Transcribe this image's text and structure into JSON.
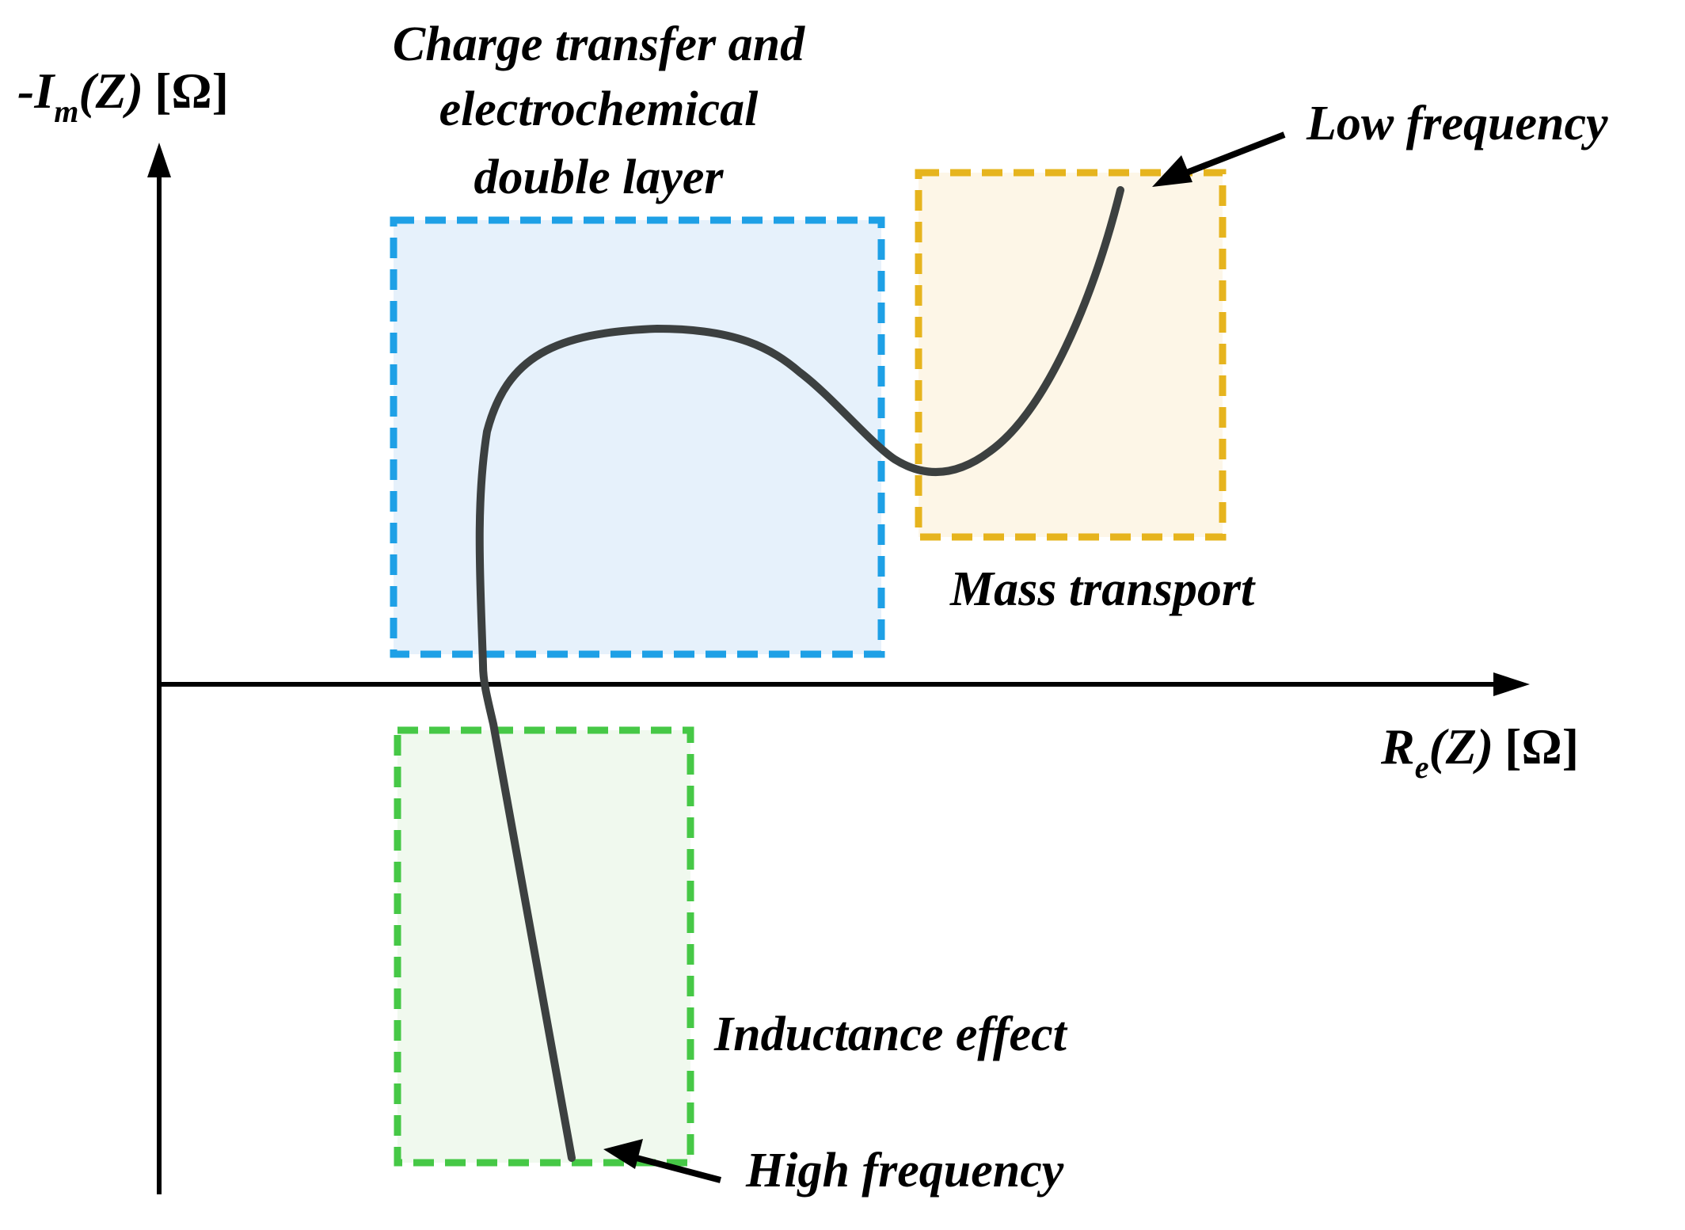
{
  "axes": {
    "y_label": {
      "prefix": "-I",
      "subscript": "m",
      "mid": "(Z)",
      "unit": "[Ω]"
    },
    "x_label": {
      "prefix": "R",
      "subscript": "e",
      "mid": "(Z)",
      "unit": "[Ω]"
    }
  },
  "regions": {
    "charge_transfer": {
      "lines": [
        "Charge transfer and",
        "electrochemical",
        "double layer"
      ],
      "color": "#1ea0e6",
      "fill": "#e6f1fb"
    },
    "mass_transport": {
      "label": "Mass transport",
      "color": "#e6b41e",
      "fill": "#fdf6e7"
    },
    "inductance": {
      "label": "Inductance effect",
      "color": "#46c846",
      "fill": "#f0f9ee"
    }
  },
  "annotations": {
    "low_frequency": "Low frequency",
    "high_frequency": "High frequency"
  },
  "colors": {
    "curve": "#3c4040",
    "axis": "#000000"
  }
}
